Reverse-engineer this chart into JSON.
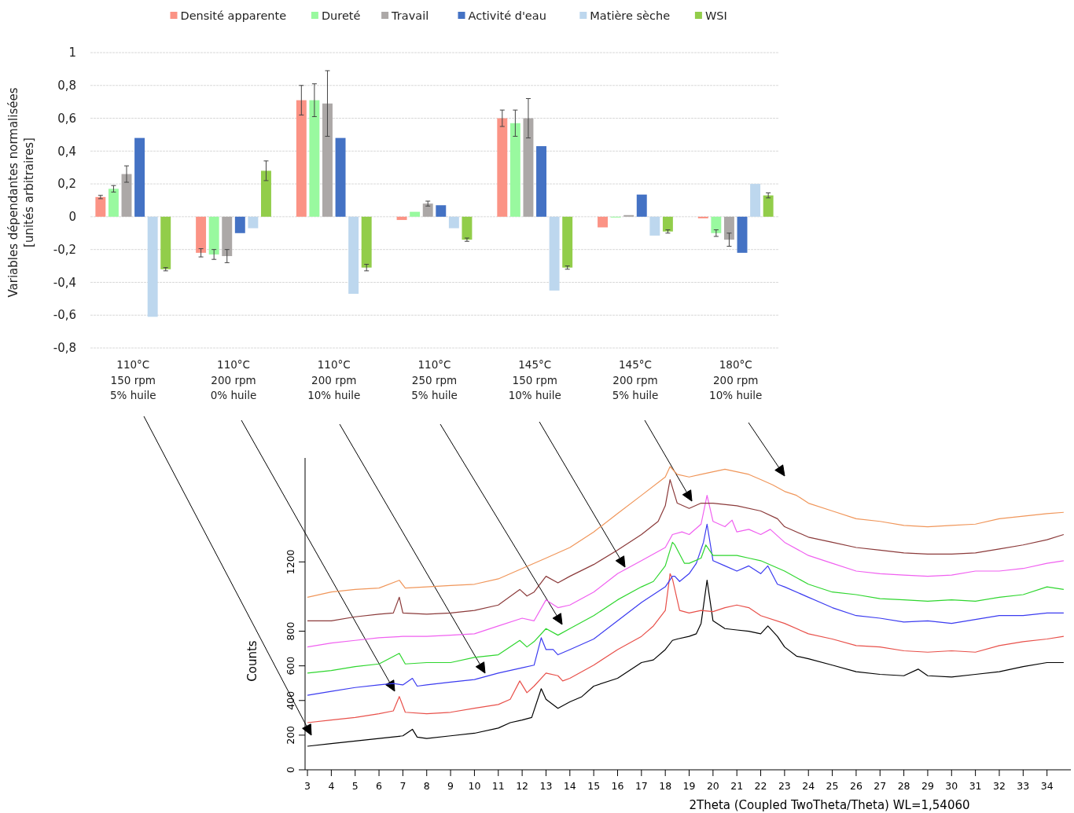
{
  "chart_data": [
    {
      "type": "bar",
      "ylabel": "Variables dépendantes normalisées\n[unités arbitraires]",
      "categories": [
        "110°C\n150 rpm\n5% huile",
        "110°C\n200 rpm\n0% huile",
        "110°C\n200 rpm\n10% huile",
        "110°C\n250 rpm\n5% huile",
        "145°C\n150 rpm\n10% huile",
        "145°C\n200 rpm\n5% huile",
        "180°C\n200 rpm\n10% huile"
      ],
      "series": [
        {
          "name": "Densité apparente",
          "color": "#fb9385",
          "values": [
            0.12,
            -0.22,
            0.71,
            -0.02,
            0.6,
            -0.065,
            -0.01
          ],
          "errors": [
            0.01,
            0.025,
            0.09,
            null,
            0.05,
            null,
            null
          ]
        },
        {
          "name": "Dureté",
          "color": "#99f99f",
          "values": [
            0.17,
            -0.23,
            0.71,
            0.03,
            0.57,
            -0.005,
            -0.1
          ],
          "errors": [
            0.02,
            0.03,
            0.1,
            null,
            0.08,
            null,
            0.02
          ]
        },
        {
          "name": "Travail",
          "color": "#aca8a7",
          "values": [
            0.26,
            -0.24,
            0.69,
            0.08,
            0.6,
            0.01,
            -0.14
          ],
          "errors": [
            0.05,
            0.04,
            0.2,
            0.015,
            0.12,
            null,
            0.04
          ]
        },
        {
          "name": "Activité d'eau",
          "color": "#4472c4",
          "values": [
            0.48,
            -0.1,
            0.48,
            0.07,
            0.43,
            0.135,
            -0.22
          ]
        },
        {
          "name": "Matière sèche",
          "color": "#bdd7ee",
          "values": [
            -0.61,
            -0.07,
            -0.47,
            -0.07,
            -0.45,
            -0.115,
            0.2
          ]
        },
        {
          "name": "WSI",
          "color": "#92cd4a",
          "values": [
            -0.32,
            0.28,
            -0.31,
            -0.14,
            -0.31,
            -0.09,
            0.13
          ],
          "errors": [
            0.01,
            0.06,
            0.02,
            0.01,
            0.01,
            0.01,
            0.015
          ]
        }
      ],
      "ylim": [
        -0.8,
        1
      ],
      "yticks": [
        {
          "value": -0.8,
          "label": "-0,8"
        },
        {
          "value": -0.6,
          "label": "-0,6"
        },
        {
          "value": -0.4,
          "label": "-0,4"
        },
        {
          "value": -0.2,
          "label": "-0,2"
        },
        0,
        {
          "value": 0.2,
          "label": "0,2"
        },
        {
          "value": 0.4,
          "label": "0,4"
        },
        {
          "value": 0.6,
          "label": "0,6"
        },
        {
          "value": 0.8,
          "label": "0,8"
        },
        1
      ],
      "grid": "y",
      "legend": "top"
    },
    {
      "type": "line",
      "xlabel": "2Theta (Coupled TwoTheta/Theta) WL=1,54060",
      "ylabel": "Counts",
      "xlim": [
        2.9,
        35
      ],
      "ylim": [
        0,
        1800
      ],
      "xticks": [
        3,
        4,
        5,
        6,
        7,
        8,
        9,
        10,
        11,
        12,
        13,
        14,
        15,
        16,
        17,
        18,
        19,
        20,
        21,
        22,
        23,
        24,
        25,
        26,
        27,
        28,
        29,
        30,
        31,
        32,
        33,
        34
      ],
      "yticks": [
        0,
        200,
        400,
        600,
        800,
        1200
      ],
      "marker": "none",
      "line_style": "solid",
      "series": [
        {
          "color": "#000000",
          "x": [
            3,
            4,
            5,
            6,
            7,
            7.4,
            7.6,
            8,
            9,
            10,
            11,
            11.5,
            12,
            12.4,
            12.8,
            13,
            13.5,
            14,
            14.5,
            15,
            16,
            17,
            17.5,
            18,
            18.3,
            18.5,
            19,
            19.3,
            19.5,
            19.75,
            20,
            20.5,
            21,
            21.5,
            22,
            22.3,
            22.7,
            23,
            23.5,
            24,
            25,
            26,
            27,
            28,
            28.6,
            29,
            30,
            31,
            32,
            33,
            34,
            34.7
          ],
          "values": [
            136,
            151,
            166,
            181,
            196,
            234,
            189,
            181,
            196,
            211,
            241,
            272,
            287,
            302,
            468,
            407,
            355,
            392,
            422,
            483,
            528,
            619,
            634,
            694,
            747,
            755,
            770,
            785,
            845,
            1094,
            860,
            815,
            807,
            800,
            785,
            830,
            770,
            709,
            656,
            641,
            604,
            566,
            551,
            543,
            581,
            543,
            536,
            551,
            566,
            596,
            619,
            619
          ]
        },
        {
          "color": "#e8504a",
          "x": [
            3,
            4,
            5,
            6,
            6.6,
            6.85,
            7.1,
            8,
            9,
            10,
            11,
            11.5,
            11.9,
            12.2,
            12.5,
            13,
            13.5,
            13.7,
            14,
            15,
            16,
            17,
            17.5,
            18,
            18.2,
            18.3,
            18.6,
            19,
            19.5,
            20,
            20.5,
            21,
            21.5,
            22,
            23,
            24,
            25,
            26,
            27,
            28,
            29,
            30,
            31,
            32,
            33,
            34,
            34.7
          ],
          "values": [
            272,
            287,
            302,
            324,
            340,
            423,
            332,
            324,
            332,
            355,
            377,
            407,
            513,
            445,
            483,
            558,
            543,
            513,
            528,
            604,
            694,
            770,
            830,
            920,
            1132,
            1102,
            920,
            905,
            920,
            913,
            936,
            951,
            936,
            890,
            845,
            785,
            755,
            717,
            709,
            687,
            679,
            687,
            679,
            717,
            740,
            755,
            770
          ]
        },
        {
          "color": "#3b3bf0",
          "x": [
            3,
            4,
            5,
            6,
            6.6,
            7,
            7.4,
            7.6,
            8,
            9,
            10,
            11,
            12,
            12.5,
            12.8,
            13,
            13.3,
            13.5,
            14,
            15,
            16,
            17,
            17.5,
            18,
            18.3,
            18.4,
            18.6,
            19,
            19.3,
            19.6,
            19.75,
            20,
            20.5,
            21,
            21.5,
            22,
            22.3,
            22.7,
            23,
            24,
            25,
            26,
            27,
            28,
            29,
            30,
            31,
            32,
            33,
            34,
            34.7
          ],
          "values": [
            430,
            453,
            475,
            490,
            498,
            490,
            528,
            483,
            490,
            506,
            521,
            558,
            589,
            604,
            762,
            694,
            694,
            664,
            694,
            755,
            860,
            966,
            1011,
            1056,
            1117,
            1117,
            1087,
            1132,
            1192,
            1313,
            1418,
            1207,
            1177,
            1147,
            1177,
            1132,
            1177,
            1071,
            1056,
            996,
            936,
            890,
            875,
            853,
            860,
            845,
            868,
            890,
            890,
            905,
            905
          ]
        },
        {
          "color": "#2ed62e",
          "x": [
            3,
            4,
            5,
            6,
            6.85,
            7.1,
            8,
            9,
            10,
            11,
            11.9,
            12.2,
            12.5,
            13,
            13.5,
            14,
            15,
            16,
            17,
            17.5,
            18,
            18.3,
            18.4,
            18.8,
            19,
            19.5,
            19.7,
            20,
            20.5,
            21,
            21.5,
            22,
            23,
            24,
            25,
            26,
            27,
            28,
            29,
            30,
            31,
            32,
            33,
            34,
            34.7
          ],
          "values": [
            558,
            573,
            596,
            611,
            672,
            611,
            619,
            619,
            649,
            664,
            747,
            709,
            740,
            815,
            777,
            815,
            890,
            981,
            1056,
            1087,
            1177,
            1313,
            1298,
            1192,
            1192,
            1222,
            1298,
            1237,
            1237,
            1237,
            1222,
            1207,
            1147,
            1071,
            1026,
            1011,
            988,
            981,
            973,
            981,
            973,
            996,
            1011,
            1056,
            1041
          ]
        },
        {
          "color": "#f060f0",
          "x": [
            3,
            4,
            5,
            6,
            7,
            8,
            9,
            10,
            11,
            12,
            12.5,
            13,
            13.5,
            14,
            15,
            16,
            17,
            18,
            18.3,
            18.7,
            19,
            19.5,
            19.75,
            20,
            20.5,
            20.8,
            21,
            21.5,
            22,
            22.4,
            23,
            24,
            25,
            26,
            27,
            28,
            29,
            30,
            31,
            32,
            33,
            34,
            34.7
          ],
          "values": [
            709,
            732,
            747,
            762,
            770,
            770,
            777,
            785,
            830,
            875,
            860,
            981,
            936,
            951,
            1026,
            1132,
            1207,
            1283,
            1358,
            1373,
            1358,
            1418,
            1584,
            1434,
            1403,
            1441,
            1373,
            1388,
            1358,
            1388,
            1313,
            1237,
            1192,
            1147,
            1132,
            1124,
            1117,
            1124,
            1147,
            1147,
            1162,
            1192,
            1207
          ]
        },
        {
          "color": "#8b3a3a",
          "x": [
            3,
            4,
            5,
            6,
            6.6,
            6.85,
            7,
            8,
            9,
            10,
            11,
            11.9,
            12.2,
            12.5,
            13,
            13.5,
            14,
            15,
            16,
            17,
            17.7,
            18,
            18.2,
            18.5,
            19,
            19.5,
            20,
            21,
            22,
            22.7,
            23,
            24,
            25,
            26,
            27,
            28,
            29,
            30,
            31,
            32,
            33,
            34,
            34.7
          ],
          "values": [
            860,
            860,
            883,
            898,
            905,
            996,
            905,
            898,
            905,
            920,
            951,
            1041,
            1003,
            1026,
            1117,
            1079,
            1117,
            1185,
            1268,
            1358,
            1434,
            1524,
            1675,
            1539,
            1509,
            1539,
            1539,
            1524,
            1494,
            1449,
            1403,
            1343,
            1313,
            1283,
            1268,
            1252,
            1245,
            1245,
            1252,
            1275,
            1298,
            1328,
            1358
          ]
        },
        {
          "color": "#f0965a",
          "x": [
            3,
            4,
            5,
            6,
            6.85,
            7.1,
            8,
            9,
            10,
            11,
            12,
            13,
            14,
            15,
            16,
            17,
            18,
            18.2,
            18.5,
            19,
            19.5,
            20,
            20.5,
            21,
            21.5,
            22,
            22.5,
            23,
            23.5,
            24,
            25,
            26,
            27,
            28,
            29,
            30,
            31,
            32,
            33,
            34,
            34.7
          ],
          "values": [
            996,
            1026,
            1041,
            1049,
            1094,
            1049,
            1056,
            1064,
            1071,
            1102,
            1162,
            1222,
            1283,
            1373,
            1479,
            1584,
            1690,
            1750,
            1705,
            1690,
            1705,
            1720,
            1735,
            1720,
            1705,
            1675,
            1645,
            1607,
            1584,
            1539,
            1494,
            1449,
            1434,
            1411,
            1403,
            1411,
            1418,
            1449,
            1464,
            1479,
            1486
          ]
        }
      ]
    }
  ]
}
